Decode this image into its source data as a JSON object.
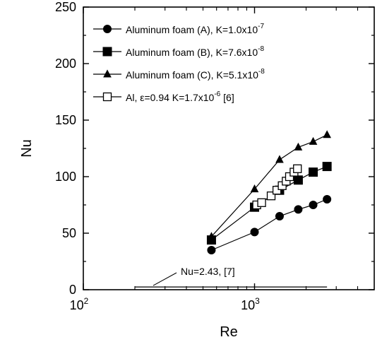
{
  "chart_data": {
    "type": "scatter",
    "title": "",
    "xlabel": "Re",
    "ylabel": "Nu",
    "xscale": "log",
    "xlim": [
      100,
      5000
    ],
    "ylim": [
      0,
      250
    ],
    "x_tick_labels": [
      {
        "value": 100,
        "base": "10",
        "exp": "2"
      },
      {
        "value": 1000,
        "base": "10",
        "exp": "3"
      }
    ],
    "y_ticks": [
      0,
      50,
      100,
      150,
      200,
      250
    ],
    "y_tick_labels": [
      "0",
      "50",
      "100",
      "150",
      "200",
      "250"
    ],
    "grid": false,
    "legend_position": "top-left",
    "series": [
      {
        "name": "Aluminum foam (A), K=1.0x10",
        "name_exp": "-7",
        "marker": "circle-filled",
        "connected": true,
        "x": [
          560,
          1000,
          1400,
          1800,
          2200,
          2650
        ],
        "y": [
          35,
          51,
          65,
          71,
          75,
          80
        ]
      },
      {
        "name": "Aluminum foam (B), K=7.6x10",
        "name_exp": "-8",
        "marker": "square-filled",
        "connected": true,
        "x": [
          560,
          1000,
          1400,
          1800,
          2200,
          2650
        ],
        "y": [
          44,
          73,
          88,
          97,
          104,
          109
        ]
      },
      {
        "name": "Aluminum foam (C), K=5.1x10",
        "name_exp": "-8",
        "marker": "triangle-filled",
        "connected": true,
        "x": [
          560,
          1000,
          1400,
          1800,
          2200,
          2650
        ],
        "y": [
          47,
          89,
          115,
          126,
          131,
          137
        ]
      },
      {
        "name": "Al, ε=0.94 K=1.7x10",
        "name_exp": "-6",
        "name_suffix": " [6]",
        "marker": "square-open",
        "connected": true,
        "x": [
          1030,
          1100,
          1250,
          1350,
          1450,
          1530,
          1600,
          1700,
          1780
        ],
        "y": [
          75,
          77,
          83,
          88,
          92,
          96,
          100,
          104,
          107
        ]
      }
    ],
    "reference_line": {
      "label": "Nu=2.43, [7]",
      "x": [
        200,
        2650
      ],
      "y": 2.43
    }
  }
}
